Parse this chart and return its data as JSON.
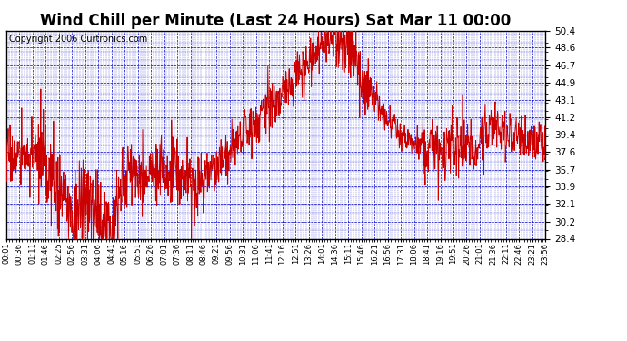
{
  "title": "Wind Chill per Minute (Last 24 Hours) Sat Mar 11 00:00",
  "copyright": "Copyright 2006 Curtronics.com",
  "yticks": [
    28.4,
    30.2,
    32.1,
    33.9,
    35.7,
    37.6,
    39.4,
    41.2,
    43.1,
    44.9,
    46.7,
    48.6,
    50.4
  ],
  "ylim": [
    28.4,
    50.4
  ],
  "line_color": "#cc0000",
  "grid_color": "#0000cc",
  "bg_color": "#ffffff",
  "title_fontsize": 12,
  "copyright_fontsize": 7,
  "xtick_labels": [
    "00:01",
    "00:36",
    "01:11",
    "01:46",
    "02:25",
    "02:56",
    "03:31",
    "04:06",
    "04:41",
    "05:16",
    "05:51",
    "06:26",
    "07:01",
    "07:36",
    "08:11",
    "08:46",
    "09:21",
    "09:56",
    "10:31",
    "11:06",
    "11:41",
    "12:16",
    "12:51",
    "13:26",
    "14:01",
    "14:36",
    "15:11",
    "15:46",
    "16:21",
    "16:56",
    "17:31",
    "18:06",
    "18:41",
    "19:16",
    "19:51",
    "20:26",
    "21:01",
    "21:36",
    "22:11",
    "22:46",
    "23:21",
    "23:56"
  ]
}
